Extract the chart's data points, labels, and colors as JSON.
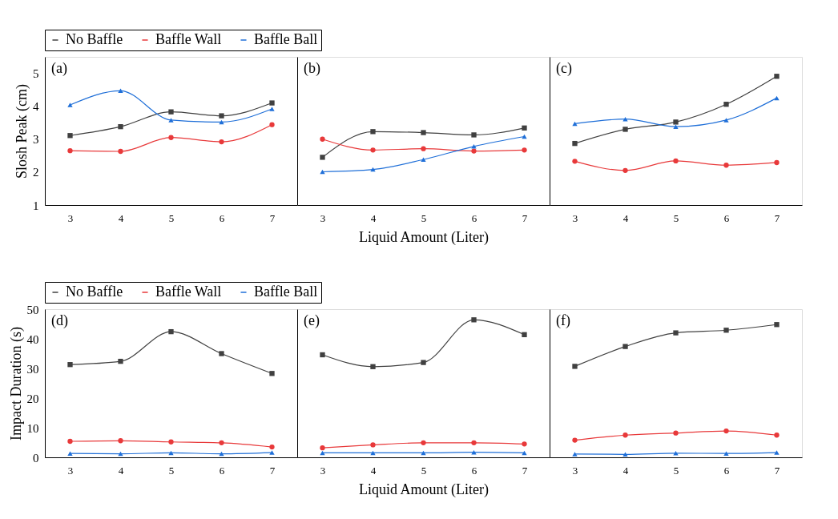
{
  "chart_data": [
    {
      "type": "line",
      "categories": [
        "3",
        "4",
        "5",
        "6",
        "7"
      ],
      "ylabel": "Slosh Peak (cm)",
      "ylim": [
        1,
        5.5
      ],
      "yticks": [
        1,
        2,
        3,
        4,
        5
      ],
      "legend": "top",
      "annotations": [
        "(a)"
      ],
      "series": [
        {
          "name": "No Baffle",
          "color": "#404040",
          "marker": "square",
          "values": [
            3.11,
            3.38,
            3.83,
            3.71,
            4.1
          ]
        },
        {
          "name": "Baffle Wall",
          "color": "#e8393a",
          "marker": "circle",
          "values": [
            2.65,
            2.63,
            3.05,
            2.92,
            3.44
          ]
        },
        {
          "name": "Baffle Ball",
          "color": "#1f6fd8",
          "marker": "triangle",
          "values": [
            4.04,
            4.47,
            3.58,
            3.52,
            3.92
          ]
        }
      ]
    },
    {
      "type": "line",
      "categories": [
        "3",
        "4",
        "5",
        "6",
        "7"
      ],
      "xlabel": "Liquid Amount (Liter)",
      "ylim": [
        1,
        5.5
      ],
      "tick_labels": "x",
      "annotations": [
        "(b)"
      ],
      "series": [
        {
          "color": "#404040",
          "marker": "square",
          "values": [
            2.45,
            3.23,
            3.2,
            3.13,
            3.34
          ]
        },
        {
          "color": "#e8393a",
          "marker": "circle",
          "values": [
            3.0,
            2.67,
            2.71,
            2.64,
            2.67
          ]
        },
        {
          "color": "#1f6fd8",
          "marker": "triangle",
          "values": [
            2.01,
            2.08,
            2.38,
            2.78,
            3.08
          ]
        }
      ]
    },
    {
      "type": "line",
      "categories": [
        "3",
        "4",
        "5",
        "6",
        "7"
      ],
      "ylim": [
        1,
        5.5
      ],
      "tick_labels": "x",
      "annotations": [
        "(c)"
      ],
      "series": [
        {
          "color": "#404040",
          "marker": "square",
          "values": [
            2.87,
            3.3,
            3.52,
            4.06,
            4.91
          ]
        },
        {
          "color": "#e8393a",
          "marker": "circle",
          "values": [
            2.33,
            2.05,
            2.34,
            2.21,
            2.29
          ]
        },
        {
          "color": "#1f6fd8",
          "marker": "triangle",
          "values": [
            3.47,
            3.61,
            3.38,
            3.58,
            4.25
          ]
        }
      ]
    },
    {
      "type": "line",
      "categories": [
        "3",
        "4",
        "5",
        "6",
        "7"
      ],
      "ylabel": "Impact Duration (s)",
      "ylim": [
        0,
        50
      ],
      "yticks": [
        0,
        10,
        20,
        30,
        40,
        50
      ],
      "legend": "top",
      "annotations": [
        "(d)"
      ],
      "series": [
        {
          "name": "No Baffle",
          "color": "#404040",
          "marker": "square",
          "values": [
            31.3,
            32.4,
            42.4,
            35.0,
            28.3
          ]
        },
        {
          "name": "Baffle Wall",
          "color": "#e8393a",
          "marker": "circle",
          "values": [
            5.4,
            5.6,
            5.2,
            4.9,
            3.5
          ]
        },
        {
          "name": "Baffle Ball",
          "color": "#1f6fd8",
          "marker": "triangle",
          "values": [
            1.3,
            1.2,
            1.5,
            1.2,
            1.6
          ]
        }
      ]
    },
    {
      "type": "line",
      "categories": [
        "3",
        "4",
        "5",
        "6",
        "7"
      ],
      "xlabel": "Liquid Amount (Liter)",
      "ylim": [
        0,
        50
      ],
      "tick_labels": "x",
      "annotations": [
        "(e)"
      ],
      "series": [
        {
          "color": "#404040",
          "marker": "square",
          "values": [
            34.6,
            30.6,
            32.0,
            46.4,
            41.4
          ]
        },
        {
          "color": "#e8393a",
          "marker": "circle",
          "values": [
            3.2,
            4.2,
            4.9,
            4.9,
            4.5
          ]
        },
        {
          "color": "#1f6fd8",
          "marker": "triangle",
          "values": [
            1.5,
            1.5,
            1.5,
            1.7,
            1.5
          ]
        }
      ]
    },
    {
      "type": "line",
      "categories": [
        "3",
        "4",
        "5",
        "6",
        "7"
      ],
      "ylim": [
        0,
        50
      ],
      "tick_labels": "x",
      "annotations": [
        "(f)"
      ],
      "series": [
        {
          "color": "#404040",
          "marker": "square",
          "values": [
            30.7,
            37.4,
            42.0,
            42.9,
            44.8
          ]
        },
        {
          "color": "#e8393a",
          "marker": "circle",
          "values": [
            5.8,
            7.5,
            8.2,
            8.9,
            7.5
          ]
        },
        {
          "color": "#1f6fd8",
          "marker": "triangle",
          "values": [
            1.1,
            1.0,
            1.4,
            1.3,
            1.6
          ]
        }
      ]
    }
  ]
}
